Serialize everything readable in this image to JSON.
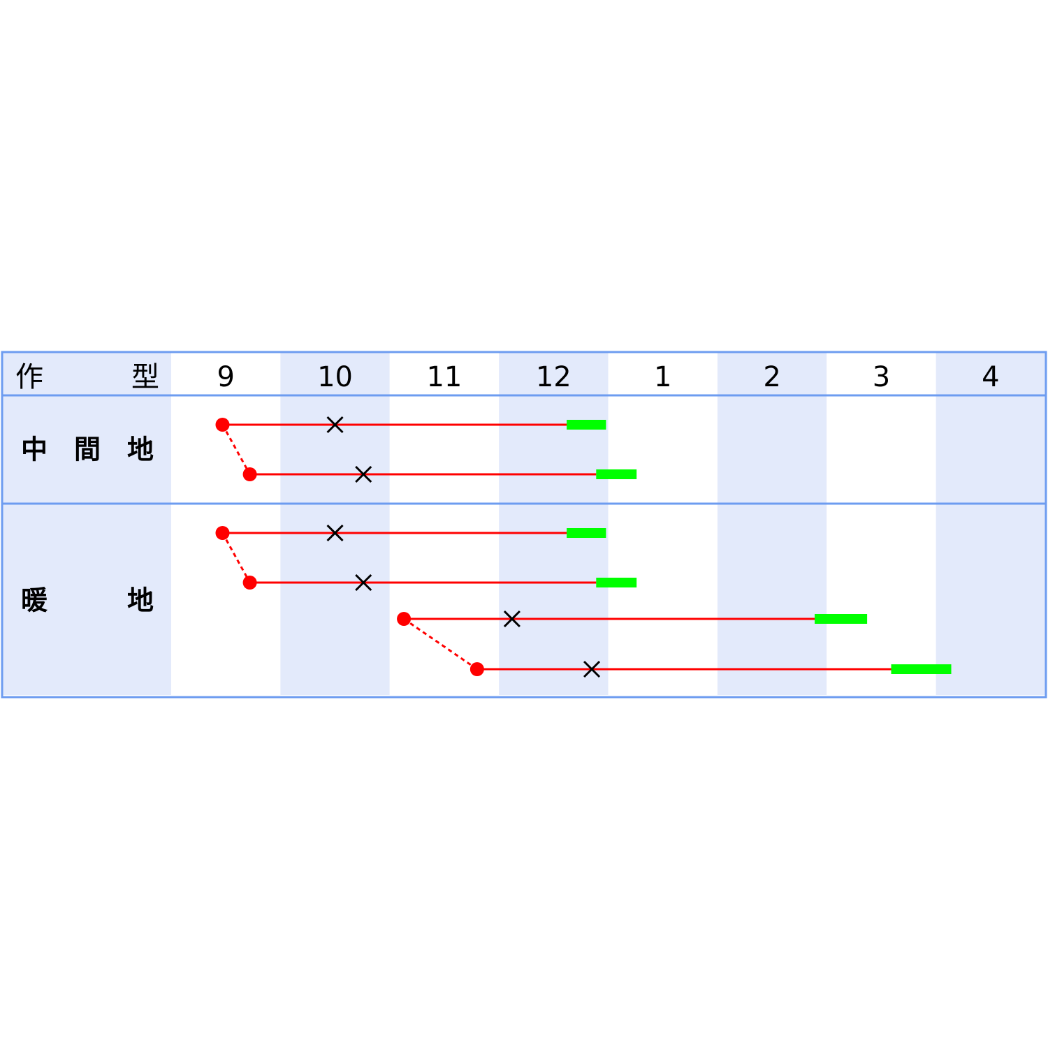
{
  "chart_data": {
    "type": "gantt",
    "header_label": [
      "作",
      "型"
    ],
    "months": [
      "9",
      "10",
      "11",
      "12",
      "1",
      "2",
      "3",
      "4"
    ],
    "colors": {
      "shade": "#e3eafb",
      "border": "#6d9cf0",
      "line": "#ff0000",
      "harvest": "#00ff00",
      "cross": "#000000"
    },
    "groups": [
      {
        "label": [
          "中",
          "間",
          "地"
        ],
        "rows": [
          {
            "sow": [
              9,
              0.47
            ],
            "transplant": [
              10,
              0.5
            ],
            "harvest": [
              [
                12,
                0.62
              ],
              [
                12,
                0.98
              ]
            ]
          },
          {
            "sow": [
              9,
              0.72
            ],
            "transplant": [
              10,
              0.76
            ],
            "harvest": [
              [
                12,
                0.89
              ],
              [
                1,
                0.26
              ]
            ]
          }
        ],
        "links": [
          [
            0,
            1
          ]
        ]
      },
      {
        "label": [
          "暖",
          "地"
        ],
        "rows": [
          {
            "sow": [
              9,
              0.47
            ],
            "transplant": [
              10,
              0.5
            ],
            "harvest": [
              [
                12,
                0.62
              ],
              [
                12,
                0.98
              ]
            ]
          },
          {
            "sow": [
              9,
              0.72
            ],
            "transplant": [
              10,
              0.76
            ],
            "harvest": [
              [
                12,
                0.89
              ],
              [
                1,
                0.26
              ]
            ]
          },
          {
            "sow": [
              11,
              0.13
            ],
            "transplant": [
              12,
              0.12
            ],
            "harvest": [
              [
                2,
                0.89
              ],
              [
                3,
                0.37
              ]
            ]
          },
          {
            "sow": [
              11,
              0.8
            ],
            "transplant": [
              12,
              0.85
            ],
            "harvest": [
              [
                3,
                0.59
              ],
              [
                4,
                0.14
              ]
            ]
          }
        ],
        "links": [
          [
            0,
            1
          ],
          [
            2,
            3
          ]
        ]
      }
    ]
  }
}
